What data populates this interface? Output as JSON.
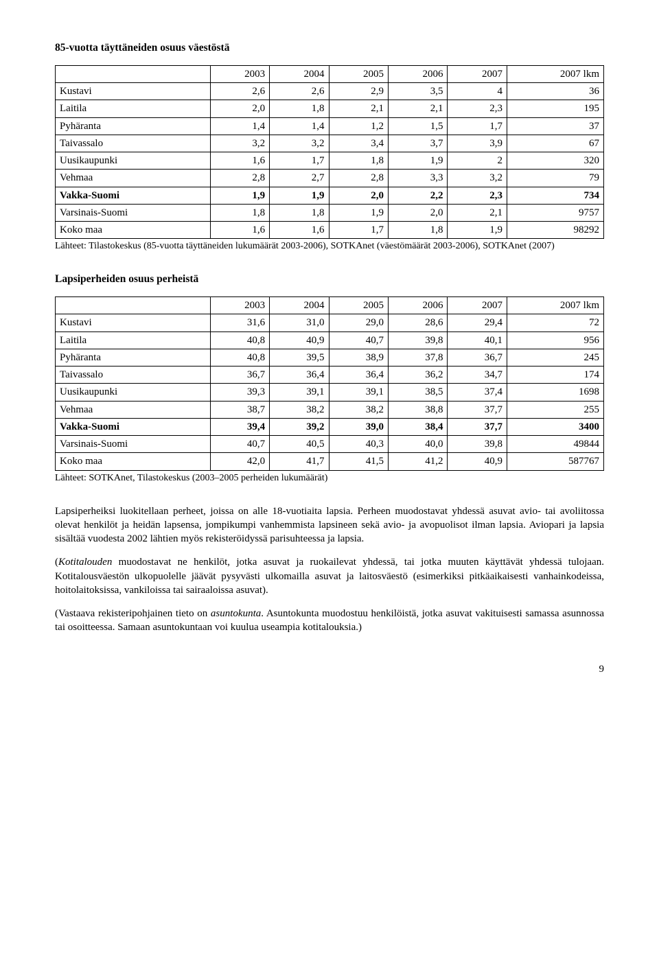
{
  "table1": {
    "title": "85-vuotta täyttäneiden osuus väestöstä",
    "columns": [
      "",
      "2003",
      "2004",
      "2005",
      "2006",
      "2007",
      "2007 lkm"
    ],
    "rows": [
      {
        "label": "Kustavi",
        "cells": [
          "2,6",
          "2,6",
          "2,9",
          "3,5",
          "4",
          "36"
        ],
        "bold": false
      },
      {
        "label": "Laitila",
        "cells": [
          "2,0",
          "1,8",
          "2,1",
          "2,1",
          "2,3",
          "195"
        ],
        "bold": false
      },
      {
        "label": "Pyhäranta",
        "cells": [
          "1,4",
          "1,4",
          "1,2",
          "1,5",
          "1,7",
          "37"
        ],
        "bold": false
      },
      {
        "label": "Taivassalo",
        "cells": [
          "3,2",
          "3,2",
          "3,4",
          "3,7",
          "3,9",
          "67"
        ],
        "bold": false
      },
      {
        "label": "Uusikaupunki",
        "cells": [
          "1,6",
          "1,7",
          "1,8",
          "1,9",
          "2",
          "320"
        ],
        "bold": false
      },
      {
        "label": "Vehmaa",
        "cells": [
          "2,8",
          "2,7",
          "2,8",
          "3,3",
          "3,2",
          "79"
        ],
        "bold": false
      },
      {
        "label": "Vakka-Suomi",
        "cells": [
          "1,9",
          "1,9",
          "2,0",
          "2,2",
          "2,3",
          "734"
        ],
        "bold": true
      },
      {
        "label": "Varsinais-Suomi",
        "cells": [
          "1,8",
          "1,8",
          "1,9",
          "2,0",
          "2,1",
          "9757"
        ],
        "bold": false
      },
      {
        "label": "Koko maa",
        "cells": [
          "1,6",
          "1,6",
          "1,7",
          "1,8",
          "1,9",
          "98292"
        ],
        "bold": false
      }
    ],
    "source": "Lähteet: Tilastokeskus (85-vuotta täyttäneiden lukumäärät 2003-2006), SOTKAnet (väestömäärät 2003-2006), SOTKAnet (2007)"
  },
  "table2": {
    "title": "Lapsiperheiden osuus perheistä",
    "columns": [
      "",
      "2003",
      "2004",
      "2005",
      "2006",
      "2007",
      "2007 lkm"
    ],
    "rows": [
      {
        "label": "Kustavi",
        "cells": [
          "31,6",
          "31,0",
          "29,0",
          "28,6",
          "29,4",
          "72"
        ],
        "bold": false
      },
      {
        "label": "Laitila",
        "cells": [
          "40,8",
          "40,9",
          "40,7",
          "39,8",
          "40,1",
          "956"
        ],
        "bold": false
      },
      {
        "label": "Pyhäranta",
        "cells": [
          "40,8",
          "39,5",
          "38,9",
          "37,8",
          "36,7",
          "245"
        ],
        "bold": false
      },
      {
        "label": "Taivassalo",
        "cells": [
          "36,7",
          "36,4",
          "36,4",
          "36,2",
          "34,7",
          "174"
        ],
        "bold": false
      },
      {
        "label": "Uusikaupunki",
        "cells": [
          "39,3",
          "39,1",
          "39,1",
          "38,5",
          "37,4",
          "1698"
        ],
        "bold": false
      },
      {
        "label": "Vehmaa",
        "cells": [
          "38,7",
          "38,2",
          "38,2",
          "38,8",
          "37,7",
          "255"
        ],
        "bold": false
      },
      {
        "label": "Vakka-Suomi",
        "cells": [
          "39,4",
          "39,2",
          "39,0",
          "38,4",
          "37,7",
          "3400"
        ],
        "bold": true
      },
      {
        "label": "Varsinais-Suomi",
        "cells": [
          "40,7",
          "40,5",
          "40,3",
          "40,0",
          "39,8",
          "49844"
        ],
        "bold": false
      },
      {
        "label": "Koko maa",
        "cells": [
          "42,0",
          "41,7",
          "41,5",
          "41,2",
          "40,9",
          "587767"
        ],
        "bold": false
      }
    ],
    "source": "Lähteet: SOTKAnet, Tilastokeskus (2003–2005 perheiden lukumäärät)"
  },
  "paragraphs": {
    "p1": "Lapsiperheiksi luokitellaan perheet, joissa on alle 18-vuotiaita lapsia. Perheen muodostavat yhdessä asuvat avio- tai avoliitossa olevat henkilöt ja heidän lapsensa, jompikumpi vanhemmista lapsineen sekä avio- ja avopuolisot ilman lapsia. Aviopari ja lapsia sisältää vuodesta 2002 lähtien myös rekisteröidyssä parisuhteessa ja lapsia.",
    "p2_pre": "(",
    "p2_em": "Kotitalouden",
    "p2_rest": " muodostavat ne henkilöt, jotka asuvat ja ruokailevat yhdessä, tai jotka muuten käyttävät yhdessä tulojaan. Kotitalousväestön ulkopuolelle jäävät pysyvästi ulkomailla asuvat ja laitosväestö (esimerkiksi pitkäaikaisesti vanhainkodeissa, hoitolaitoksissa, vankiloissa tai sairaaloissa asuvat).",
    "p3_pre": "(Vastaava rekisteripohjainen tieto on ",
    "p3_em": "asuntokunta",
    "p3_rest": ". Asuntokunta muodostuu henkilöistä, jotka asuvat vakituisesti samassa asunnossa tai osoitteessa. Samaan asuntokuntaan voi kuulua useampia kotitalouksia.)"
  },
  "page_number": "9"
}
